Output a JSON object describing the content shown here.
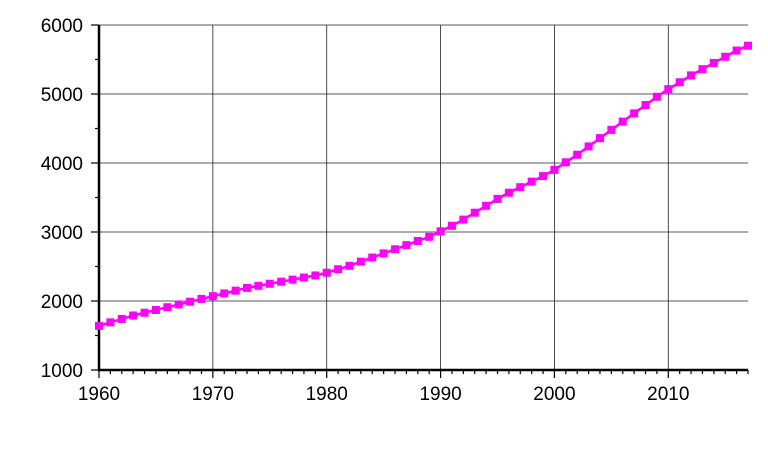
{
  "chart_data": {
    "type": "line",
    "title": "",
    "xlabel": "",
    "ylabel": "",
    "xlim": [
      1960,
      2017
    ],
    "ylim": [
      1000,
      6000
    ],
    "x_ticks": [
      1960,
      1970,
      1980,
      1990,
      2000,
      2010
    ],
    "y_ticks": [
      1000,
      2000,
      3000,
      4000,
      5000,
      6000
    ],
    "x_tick_labels": [
      "1960",
      "1970",
      "1980",
      "1990",
      "2000",
      "2010"
    ],
    "y_tick_labels": [
      "1000",
      "2000",
      "3000",
      "4000",
      "5000",
      "6000"
    ],
    "grid": true,
    "series": [
      {
        "color": "#ff00ff",
        "marker": "square",
        "x": [
          1960,
          1961,
          1962,
          1963,
          1964,
          1965,
          1966,
          1967,
          1968,
          1969,
          1970,
          1971,
          1972,
          1973,
          1974,
          1975,
          1976,
          1977,
          1978,
          1979,
          1980,
          1981,
          1982,
          1983,
          1984,
          1985,
          1986,
          1987,
          1988,
          1989,
          1990,
          1991,
          1992,
          1993,
          1994,
          1995,
          1996,
          1997,
          1998,
          1999,
          2000,
          2001,
          2002,
          2003,
          2004,
          2005,
          2006,
          2007,
          2008,
          2009,
          2010,
          2011,
          2012,
          2013,
          2014,
          2015,
          2016,
          2017
        ],
        "values": [
          1640,
          1690,
          1740,
          1790,
          1830,
          1870,
          1910,
          1950,
          1990,
          2030,
          2070,
          2110,
          2150,
          2190,
          2220,
          2250,
          2280,
          2310,
          2340,
          2370,
          2410,
          2460,
          2510,
          2570,
          2630,
          2690,
          2750,
          2810,
          2870,
          2930,
          3010,
          3090,
          3180,
          3280,
          3380,
          3480,
          3570,
          3650,
          3730,
          3810,
          3900,
          4010,
          4120,
          4240,
          4360,
          4480,
          4600,
          4720,
          4840,
          4960,
          5070,
          5170,
          5270,
          5360,
          5450,
          5540,
          5630,
          5700
        ]
      }
    ]
  }
}
